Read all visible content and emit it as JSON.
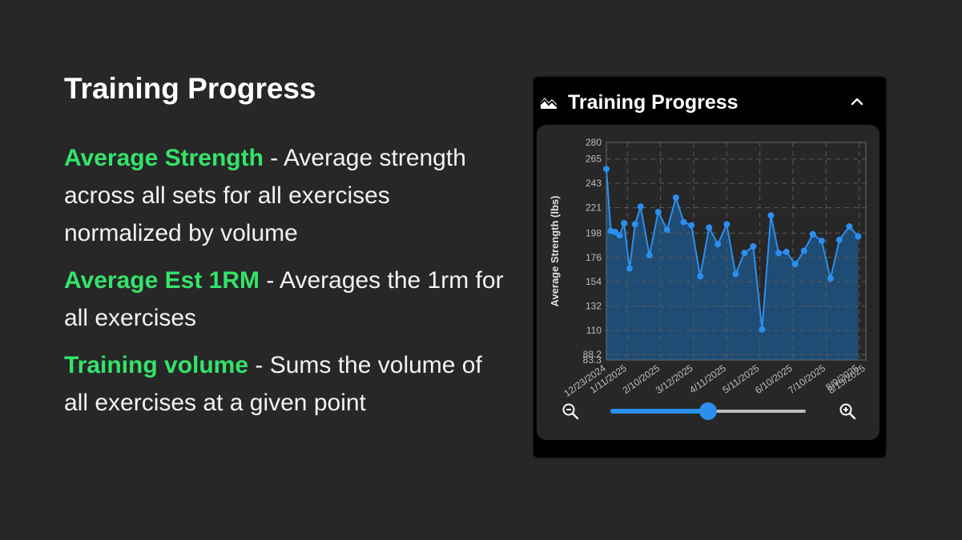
{
  "intro": {
    "heading": "Training Progress",
    "items": [
      {
        "term": "Average Strength",
        "description": " - Average strength across all sets for all exercises normalized by volume"
      },
      {
        "term": "Average Est 1RM",
        "description": " - Averages the 1rm for all exercises"
      },
      {
        "term": "Training volume",
        "description": " - Sums the volume of all exercises at a given point"
      }
    ]
  },
  "card": {
    "title": "Training Progress",
    "icon": "area-chart-icon",
    "collapse_icon": "chevron-up-icon"
  },
  "controls": {
    "zoom_out_icon": "zoom-out-icon",
    "zoom_in_icon": "zoom-in-icon",
    "zoom_level": 0.5
  },
  "colors": {
    "accent_green": "#34e36a",
    "series_blue": "#2b8ff0",
    "area_fill": "#1f4e78",
    "background": "#272727"
  },
  "chart_data": {
    "type": "area",
    "ylabel": "Average Strength (lbs)",
    "xlabel": "",
    "yticks": [
      83.3,
      88.2,
      110,
      132,
      154,
      176,
      198,
      221,
      243,
      265,
      280
    ],
    "ylim": [
      83.3,
      280
    ],
    "xticks": [
      "12/23/2024",
      "1/11/2025",
      "2/10/2025",
      "3/12/2025",
      "4/11/2025",
      "5/11/2025",
      "6/10/2025",
      "7/10/2025",
      "8/9/2025",
      "8/15/2025"
    ],
    "xlim": [
      "12/23/2024",
      "8/15/2025"
    ],
    "grid": true,
    "series": [
      {
        "values": [
          {
            "x": "12/23/2024",
            "y": 256
          },
          {
            "x": "12/27/2024",
            "y": 200
          },
          {
            "x": "12/31/2024",
            "y": 199
          },
          {
            "x": "1/4/2025",
            "y": 196
          },
          {
            "x": "1/8/2025",
            "y": 207
          },
          {
            "x": "1/13/2025",
            "y": 166
          },
          {
            "x": "1/18/2025",
            "y": 206
          },
          {
            "x": "1/23/2025",
            "y": 222
          },
          {
            "x": "1/31/2025",
            "y": 178
          },
          {
            "x": "2/8/2025",
            "y": 217
          },
          {
            "x": "2/16/2025",
            "y": 201
          },
          {
            "x": "2/24/2025",
            "y": 230
          },
          {
            "x": "3/3/2025",
            "y": 208
          },
          {
            "x": "3/10/2025",
            "y": 205
          },
          {
            "x": "3/18/2025",
            "y": 159
          },
          {
            "x": "3/26/2025",
            "y": 203
          },
          {
            "x": "4/3/2025",
            "y": 188
          },
          {
            "x": "4/11/2025",
            "y": 206
          },
          {
            "x": "4/19/2025",
            "y": 161
          },
          {
            "x": "4/27/2025",
            "y": 180
          },
          {
            "x": "5/5/2025",
            "y": 186
          },
          {
            "x": "5/13/2025",
            "y": 111
          },
          {
            "x": "5/21/2025",
            "y": 214
          },
          {
            "x": "5/28/2025",
            "y": 180
          },
          {
            "x": "6/4/2025",
            "y": 181
          },
          {
            "x": "6/12/2025",
            "y": 170
          },
          {
            "x": "6/20/2025",
            "y": 182
          },
          {
            "x": "6/28/2025",
            "y": 197
          },
          {
            "x": "7/6/2025",
            "y": 191
          },
          {
            "x": "7/14/2025",
            "y": 157
          },
          {
            "x": "7/22/2025",
            "y": 192
          },
          {
            "x": "7/31/2025",
            "y": 204
          },
          {
            "x": "8/8/2025",
            "y": 195
          }
        ]
      }
    ]
  }
}
